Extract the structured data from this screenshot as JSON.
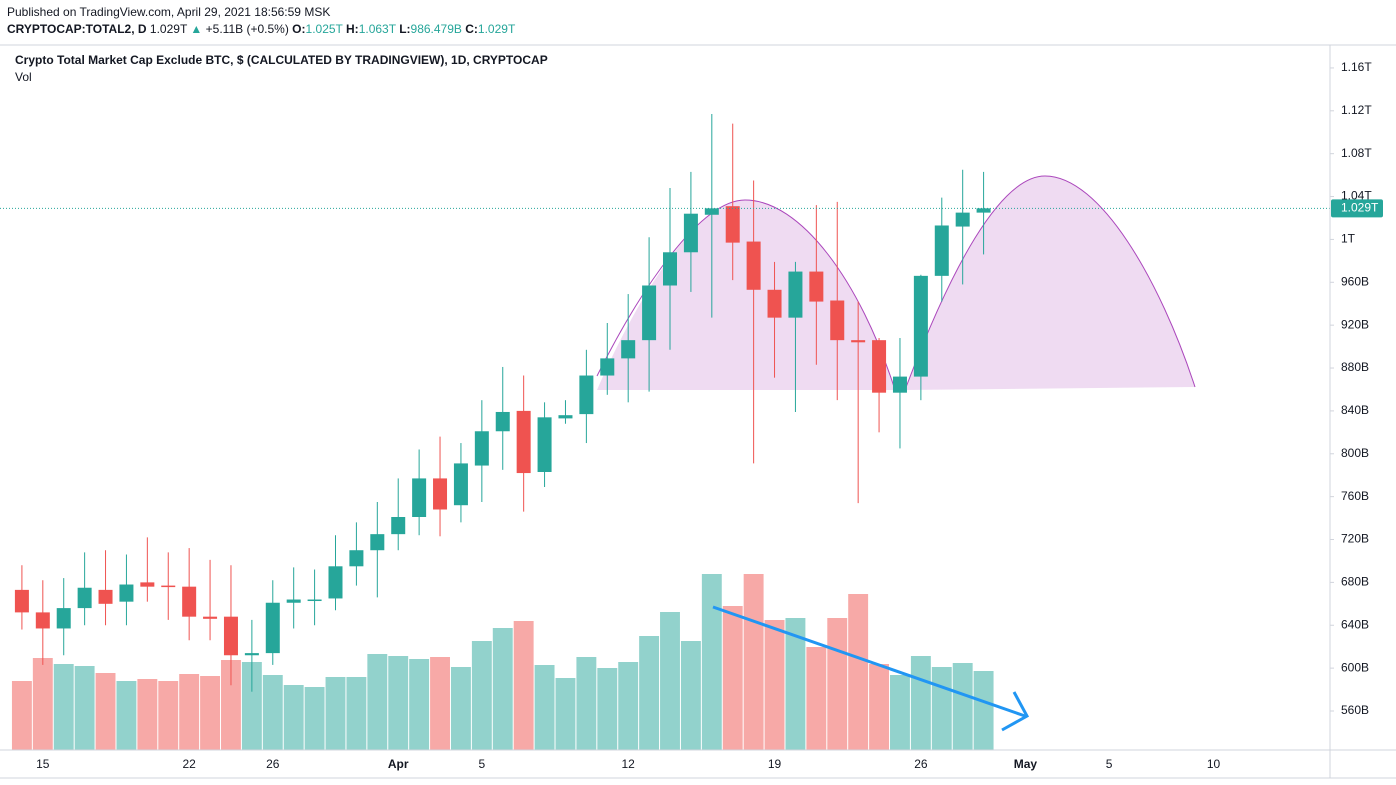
{
  "header": {
    "published": "Published on TradingView.com, April 29, 2021 18:56:59 MSK",
    "symbol": "CRYPTOCAP:TOTAL2, D",
    "last": "1.029T",
    "arrow": "▲",
    "change": "+5.11B (+0.5%)",
    "ohlc": [
      {
        "label": "O:",
        "value": "1.025T"
      },
      {
        "label": "H:",
        "value": "1.063T"
      },
      {
        "label": "L:",
        "value": "986.479B"
      },
      {
        "label": "C:",
        "value": "1.029T"
      }
    ]
  },
  "chart_data": {
    "type": "candlestick",
    "title": "Crypto Total Market Cap Exclude BTC, $ (CALCULATED BY TRADINGVIEW), 1D, CRYPTOCAP",
    "subtitle": "Vol",
    "up_color": "#26a69a",
    "down_color": "#ef5350",
    "x": [
      "2021-03-14",
      "2021-03-15",
      "2021-03-16",
      "2021-03-17",
      "2021-03-18",
      "2021-03-19",
      "2021-03-20",
      "2021-03-21",
      "2021-03-22",
      "2021-03-23",
      "2021-03-24",
      "2021-03-25",
      "2021-03-26",
      "2021-03-27",
      "2021-03-28",
      "2021-03-29",
      "2021-03-30",
      "2021-03-31",
      "2021-04-01",
      "2021-04-02",
      "2021-04-03",
      "2021-04-04",
      "2021-04-05",
      "2021-04-06",
      "2021-04-07",
      "2021-04-08",
      "2021-04-09",
      "2021-04-10",
      "2021-04-11",
      "2021-04-12",
      "2021-04-13",
      "2021-04-14",
      "2021-04-15",
      "2021-04-16",
      "2021-04-17",
      "2021-04-18",
      "2021-04-19",
      "2021-04-20",
      "2021-04-21",
      "2021-04-22",
      "2021-04-23",
      "2021-04-24",
      "2021-04-25",
      "2021-04-26",
      "2021-04-27",
      "2021-04-28",
      "2021-04-29"
    ],
    "open": [
      673,
      652,
      637,
      656,
      673,
      662,
      680,
      677,
      676,
      648,
      648,
      612,
      614,
      661,
      663,
      665,
      695,
      710,
      725,
      741,
      777,
      752,
      789,
      821,
      840,
      783,
      833,
      837,
      873,
      889,
      906,
      957,
      988,
      1023,
      1031,
      998,
      953,
      927,
      970,
      943,
      906,
      906,
      857,
      872,
      966,
      1012,
      1025
    ],
    "high": [
      696,
      682,
      684,
      708,
      710,
      706,
      722,
      708,
      712,
      701,
      696,
      645,
      682,
      694,
      692,
      724,
      736,
      755,
      777,
      804,
      816,
      810,
      850,
      881,
      873,
      848,
      850,
      897,
      922,
      949,
      1002,
      1048,
      1063,
      1117,
      1108,
      1055,
      979,
      979,
      1032,
      1035,
      942,
      908,
      908,
      967,
      1039,
      1065,
      1063
    ],
    "low": [
      636,
      603,
      612,
      640,
      640,
      640,
      662,
      645,
      626,
      626,
      584,
      578,
      603,
      637,
      640,
      654,
      677,
      666,
      710,
      724,
      723,
      736,
      755,
      785,
      746,
      769,
      828,
      810,
      855,
      848,
      858,
      897,
      951,
      927,
      962,
      791,
      871,
      839,
      883,
      850,
      754,
      820,
      805,
      850,
      942,
      958,
      986
    ],
    "close": [
      652,
      637,
      656,
      675,
      660,
      678,
      676,
      676,
      648,
      646,
      612,
      614,
      661,
      664,
      664,
      695,
      710,
      725,
      741,
      777,
      748,
      791,
      821,
      839,
      782,
      834,
      836,
      873,
      889,
      906,
      957,
      988,
      1024,
      1029,
      997,
      953,
      927,
      970,
      942,
      906,
      904,
      857,
      872,
      966,
      1013,
      1025,
      1029
    ],
    "volume": [
      69,
      92,
      86,
      84,
      77,
      69,
      71,
      69,
      76,
      74,
      90,
      88,
      75,
      65,
      63,
      73,
      73,
      96,
      94,
      91,
      93,
      83,
      109,
      122,
      129,
      85,
      72,
      93,
      82,
      88,
      114,
      138,
      109,
      176,
      144,
      176,
      130,
      132,
      103,
      132,
      156,
      86,
      75,
      94,
      83,
      87,
      79
    ],
    "volume_lim": [
      0,
      705
    ],
    "xlim": [
      "2021-03-13",
      "2021-05-16"
    ],
    "xticks": [
      {
        "value": "2021-03-15",
        "label": "15"
      },
      {
        "value": "2021-03-22",
        "label": "22"
      },
      {
        "value": "2021-03-26",
        "label": "26"
      },
      {
        "value": "2021-04-01",
        "label": "Apr"
      },
      {
        "value": "2021-04-05",
        "label": "5"
      },
      {
        "value": "2021-04-12",
        "label": "12"
      },
      {
        "value": "2021-04-19",
        "label": "19"
      },
      {
        "value": "2021-04-26",
        "label": "26"
      },
      {
        "value": "2021-05-01",
        "label": "May"
      },
      {
        "value": "2021-05-05",
        "label": "5"
      },
      {
        "value": "2021-05-10",
        "label": "10"
      }
    ],
    "ylim": [
      523.6,
      1181.4
    ],
    "yticks": [
      {
        "value": 560,
        "label": "560B"
      },
      {
        "value": 600,
        "label": "600B"
      },
      {
        "value": 640,
        "label": "640B"
      },
      {
        "value": 680,
        "label": "680B"
      },
      {
        "value": 720,
        "label": "720B"
      },
      {
        "value": 760,
        "label": "760B"
      },
      {
        "value": 800,
        "label": "800B"
      },
      {
        "value": 840,
        "label": "840B"
      },
      {
        "value": 880,
        "label": "880B"
      },
      {
        "value": 920,
        "label": "920B"
      },
      {
        "value": 960,
        "label": "960B"
      },
      {
        "value": 1000,
        "label": "1T"
      },
      {
        "value": 1040,
        "label": "1.04T"
      },
      {
        "value": 1080,
        "label": "1.08T"
      },
      {
        "value": 1120,
        "label": "1.12T"
      },
      {
        "value": 1160,
        "label": "1.16T"
      }
    ],
    "last_price": {
      "value": 1029,
      "label": "1.029T"
    },
    "grid": true
  }
}
